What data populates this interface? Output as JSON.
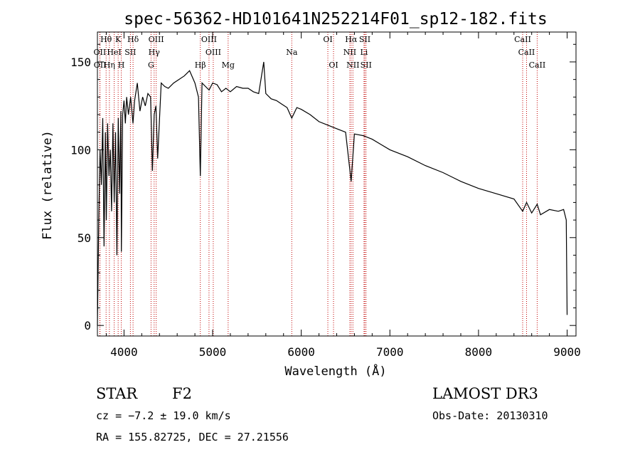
{
  "chart_data": {
    "type": "line",
    "title": "spec-56362-HD101641N252214F01_sp12-182.fits",
    "xlabel": "Wavelength (Å)",
    "ylabel": "Flux (relative)",
    "xlim": [
      3700,
      9100
    ],
    "ylim": [
      -6,
      167
    ],
    "x_ticks": [
      4000,
      5000,
      6000,
      7000,
      8000,
      9000
    ],
    "y_ticks": [
      0,
      50,
      100,
      150
    ],
    "grid": false,
    "series": [
      {
        "name": "spectrum",
        "x": [
          3700,
          3715,
          3730,
          3745,
          3760,
          3775,
          3790,
          3800,
          3815,
          3830,
          3845,
          3860,
          3875,
          3889,
          3905,
          3920,
          3935,
          3950,
          3965,
          3970,
          3985,
          4000,
          4015,
          4030,
          4050,
          4075,
          4101,
          4120,
          4150,
          4180,
          4210,
          4240,
          4270,
          4300,
          4320,
          4340,
          4360,
          4380,
          4420,
          4460,
          4500,
          4560,
          4620,
          4680,
          4740,
          4800,
          4840,
          4861,
          4880,
          4920,
          4960,
          5000,
          5050,
          5100,
          5150,
          5200,
          5270,
          5340,
          5400,
          5460,
          5520,
          5577,
          5600,
          5660,
          5720,
          5780,
          5840,
          5893,
          5950,
          6000,
          6100,
          6200,
          6300,
          6400,
          6500,
          6563,
          6600,
          6700,
          6800,
          6900,
          7000,
          7200,
          7400,
          7600,
          7800,
          8000,
          8200,
          8400,
          8498,
          8542,
          8600,
          8662,
          8700,
          8800,
          8900,
          8960,
          8990,
          9000
        ],
        "values": [
          0,
          60,
          100,
          80,
          118,
          45,
          110,
          60,
          115,
          85,
          100,
          65,
          115,
          70,
          110,
          40,
          118,
          75,
          122,
          42,
          120,
          128,
          115,
          130,
          120,
          130,
          115,
          128,
          138,
          122,
          130,
          125,
          132,
          130,
          88,
          120,
          125,
          95,
          138,
          136,
          135,
          138,
          140,
          142,
          145,
          138,
          130,
          85,
          138,
          136,
          134,
          138,
          137,
          133,
          135,
          133,
          136,
          135,
          135,
          133,
          132,
          150,
          132,
          129,
          128,
          126,
          124,
          118,
          124,
          123,
          120,
          116,
          114,
          112,
          110,
          82,
          109,
          108,
          106,
          103,
          100,
          96,
          91,
          87,
          82,
          78,
          75,
          72,
          65,
          70,
          64,
          69,
          63,
          66,
          65,
          66,
          60,
          6
        ]
      }
    ],
    "lines": [
      {
        "name": "Hθ",
        "wave": 3798,
        "row": 0
      },
      {
        "name": "K",
        "wave": 3934,
        "row": 0
      },
      {
        "name": "Hδ",
        "wave": 4102,
        "row": 0
      },
      {
        "name": "OIII",
        "wave": 4363,
        "row": 0
      },
      {
        "name": "OIII",
        "wave": 4959,
        "row": 0
      },
      {
        "name": "OI",
        "wave": 6300,
        "row": 0
      },
      {
        "name": "Hα",
        "wave": 6563,
        "row": 0
      },
      {
        "name": "SII",
        "wave": 6717,
        "row": 0
      },
      {
        "name": "CaII",
        "wave": 8498,
        "row": 0
      },
      {
        "name": "OII",
        "wave": 3727,
        "row": 1
      },
      {
        "name": "HeI",
        "wave": 3889,
        "row": 1
      },
      {
        "name": "SII",
        "wave": 4072,
        "row": 1
      },
      {
        "name": "Hγ",
        "wave": 4340,
        "row": 1
      },
      {
        "name": "OIII",
        "wave": 5007,
        "row": 1
      },
      {
        "name": "Na",
        "wave": 5893,
        "row": 1
      },
      {
        "name": "NII",
        "wave": 6548,
        "row": 1
      },
      {
        "name": "Li",
        "wave": 6708,
        "row": 1
      },
      {
        "name": "CaII",
        "wave": 8542,
        "row": 1
      },
      {
        "name": "OII",
        "wave": 3729,
        "row": 2
      },
      {
        "name": "Hη",
        "wave": 3835,
        "row": 2
      },
      {
        "name": "H",
        "wave": 3969,
        "row": 2
      },
      {
        "name": "G",
        "wave": 4305,
        "row": 2
      },
      {
        "name": "Hβ",
        "wave": 4861,
        "row": 2
      },
      {
        "name": "Mg",
        "wave": 5175,
        "row": 2
      },
      {
        "name": "OI",
        "wave": 6364,
        "row": 2
      },
      {
        "name": "NII",
        "wave": 6583,
        "row": 2
      },
      {
        "name": "SII",
        "wave": 6731,
        "row": 2
      },
      {
        "name": "CaII",
        "wave": 8662,
        "row": 2
      }
    ]
  },
  "info": {
    "object_class": "STAR",
    "subclass": "F2",
    "survey": "LAMOST DR3",
    "redshift": "cz = −7.2 ± 19.0 km/s",
    "obs_date": "Obs-Date: 20130310",
    "coords": "RA = 155.82725, DEC =  27.21556"
  },
  "colors": {
    "spectrum": "#000000",
    "line_markers": "#c00000"
  }
}
